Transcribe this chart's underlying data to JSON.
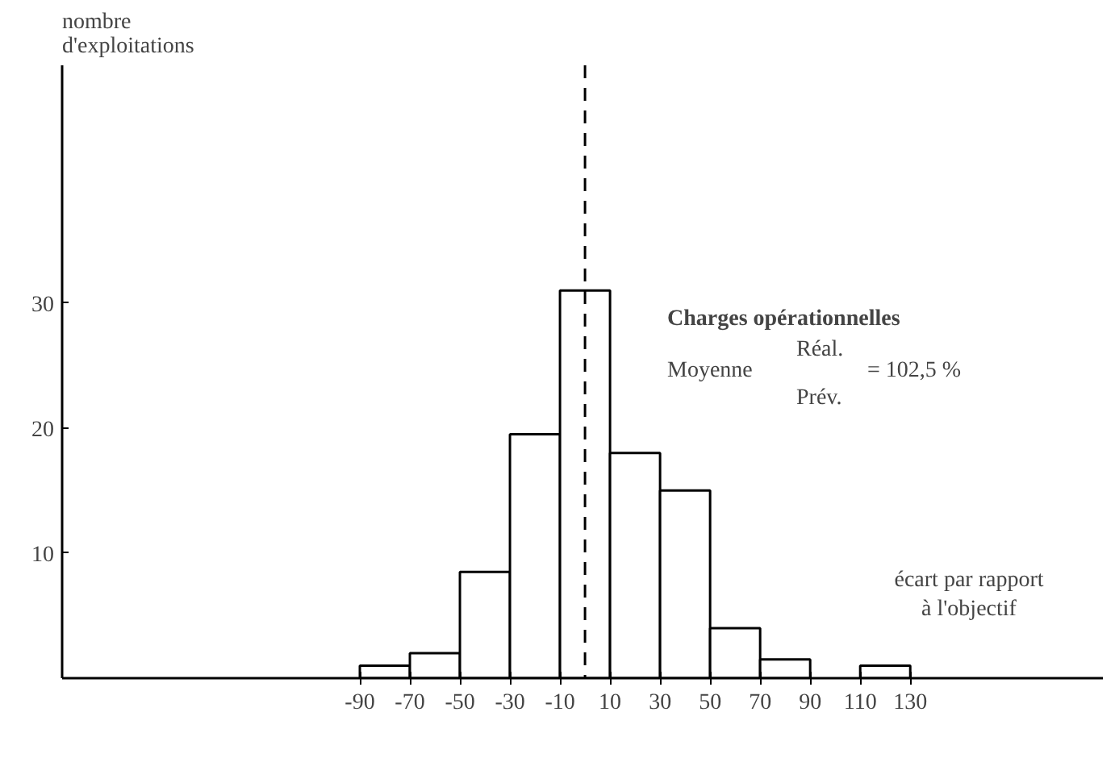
{
  "chart_data": {
    "type": "histogram",
    "title": "Charges opérationnelles",
    "ylabel": "nombre d'exploitations",
    "xlabel": "écart par rapport à l'objectif",
    "annotations": [
      "Moyenne",
      "Réal.",
      "Prév.",
      "= 102,5 %"
    ],
    "bins": [
      -90,
      -70,
      -50,
      -30,
      -10,
      10,
      30,
      50,
      70,
      90,
      110,
      130
    ],
    "values": [
      1,
      2,
      8.5,
      19.5,
      31,
      18,
      15,
      4,
      1.5,
      0,
      1
    ],
    "color": "#ffffff",
    "xlim": [
      -209,
      207
    ],
    "ylim": [
      0,
      49
    ],
    "xticks": [
      -90,
      -70,
      -50,
      -30,
      -10,
      10,
      30,
      50,
      70,
      90,
      110,
      130
    ],
    "yticks": [
      10,
      20,
      30
    ],
    "ref_lines": [
      {
        "axis": "x",
        "value": 0,
        "line_style": "dashed"
      }
    ],
    "grid": false
  }
}
